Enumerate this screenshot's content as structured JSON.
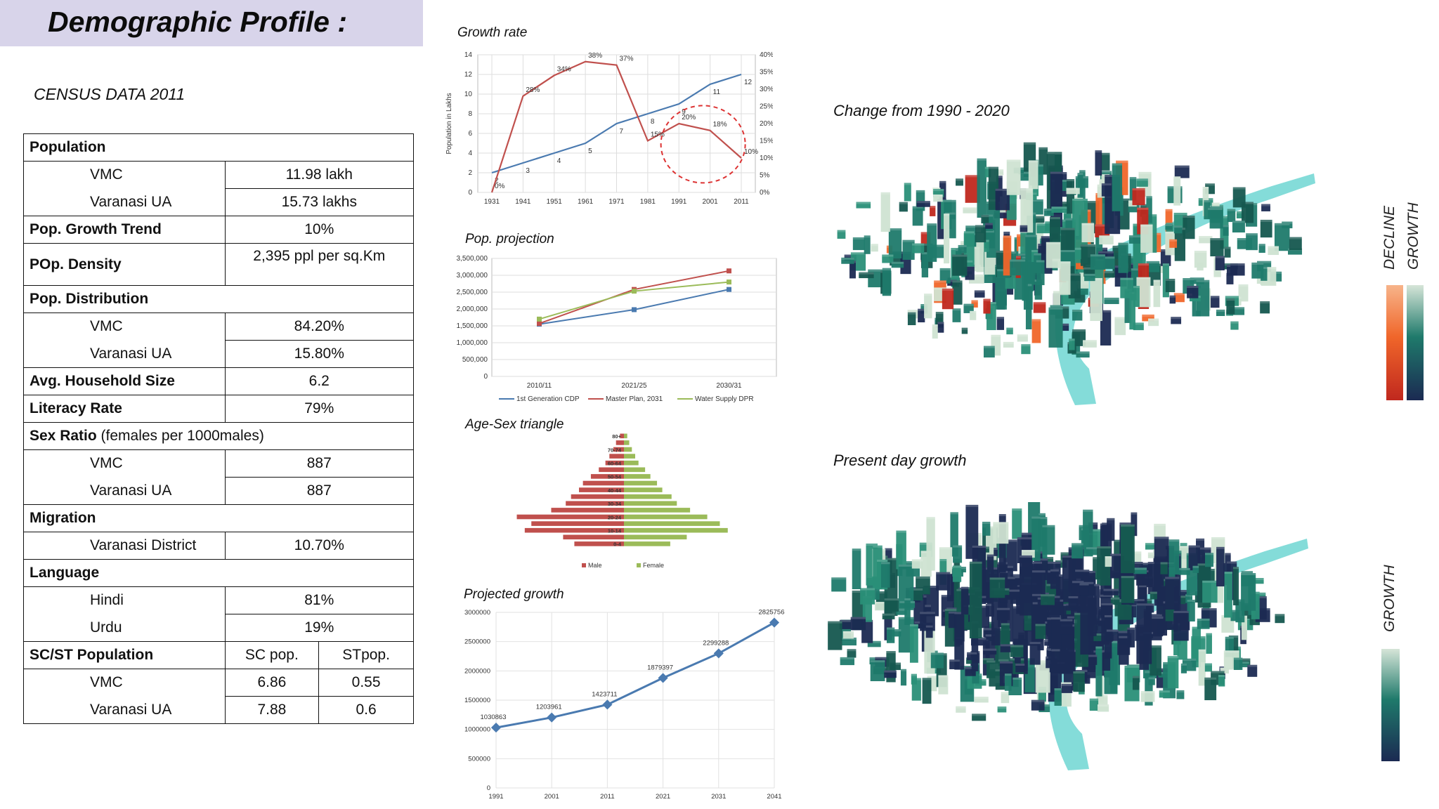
{
  "page": {
    "title": "Demographic Profile :",
    "census_label": "CENSUS DATA 2011"
  },
  "table": {
    "population": {
      "label": "Population",
      "vmc_label": "VMC",
      "vmc": "11.98 lakh",
      "ua_label": "Varanasi UA",
      "ua": "15.73 lakhs"
    },
    "growth_trend": {
      "label": "Pop. Growth Trend",
      "value": "10%"
    },
    "density": {
      "label": "POp. Density",
      "value": "2,395 ppl per sq.Km"
    },
    "distribution": {
      "label": "Pop. Distribution",
      "vmc_label": "VMC",
      "vmc": "84.20%",
      "ua_label": "Varanasi UA",
      "ua": "15.80%"
    },
    "household": {
      "label": "Avg. Household Size",
      "value": "6.2"
    },
    "literacy": {
      "label": "Literacy Rate",
      "value": "79%"
    },
    "sex_ratio": {
      "label": "Sex Ratio",
      "note": " (females per 1000males)",
      "vmc_label": "VMC",
      "vmc": "887",
      "ua_label": "Varanasi UA",
      "ua": "887"
    },
    "migration": {
      "label": "Migration",
      "district_label": "Varanasi District",
      "district": "10.70%"
    },
    "language": {
      "label": "Language",
      "hindi_label": "Hindi",
      "hindi": "81%",
      "urdu_label": "Urdu",
      "urdu": "19%"
    },
    "scst": {
      "label": "SC/ST Population",
      "sc_header": "SC pop.",
      "st_header": "STpop.",
      "vmc_label": "VMC",
      "vmc_sc": "6.86",
      "vmc_st": "0.55",
      "ua_label": "Varanasi UA",
      "ua_sc": "7.88",
      "ua_st": "0.6"
    }
  },
  "maps": {
    "change_title": "Change from 1990 - 2020",
    "present_title": "Present day growth",
    "legend_decline": "DECLINE",
    "legend_growth": "GROWTH",
    "colors": {
      "dark": "#1b2a52",
      "teal": "#1f7a6b",
      "light": "#cfe3d2",
      "river": "#6fd6d2",
      "orange": "#f0662a",
      "red": "#c0281e"
    }
  },
  "chart_data": [
    {
      "id": "growth-rate",
      "type": "line",
      "title": "Growth rate",
      "ylabel": "Population in Lakhs",
      "x": [
        1931,
        1941,
        1951,
        1961,
        1971,
        1981,
        1991,
        2001,
        2011
      ],
      "ylim": [
        0,
        14
      ],
      "y2lim": [
        0,
        40
      ],
      "y_ticks": [
        0,
        2,
        4,
        6,
        8,
        10,
        12,
        14
      ],
      "y2_ticks": [
        "0%",
        "5%",
        "10%",
        "15%",
        "20%",
        "25%",
        "30%",
        "35%",
        "40%"
      ],
      "series": [
        {
          "values": [
            2,
            3,
            4,
            5,
            7,
            8,
            9,
            11,
            12
          ],
          "labels": [
            "2",
            "3",
            "4",
            "5",
            "7",
            "8",
            "9",
            "11",
            "12"
          ],
          "color": "#4a7ab0",
          "axis": "left"
        },
        {
          "values": [
            0,
            28,
            34,
            38,
            37,
            15,
            20,
            18,
            10
          ],
          "labels": [
            "0%",
            "28%",
            "34%",
            "38%",
            "37%",
            "15%",
            "20%",
            "18%",
            "10%"
          ],
          "color": "#c0504d",
          "axis": "right"
        }
      ],
      "grid": true
    },
    {
      "id": "pop-projection",
      "type": "line",
      "title": "Pop. projection",
      "categories": [
        "2010/11",
        "2021/25",
        "2030/31"
      ],
      "ylim": [
        0,
        3500000
      ],
      "y_ticks": [
        "0",
        "500,000",
        "1,000,000",
        "1,500,000",
        "2,000,000",
        "2,500,000",
        "3,000,000",
        "3,500,000"
      ],
      "series": [
        {
          "name": "1st Generation CDP",
          "values": [
            1550000,
            1980000,
            2580000
          ],
          "color": "#4a7ab0"
        },
        {
          "name": "Master Plan, 2031",
          "values": [
            1570000,
            2580000,
            3130000
          ],
          "color": "#c0504d"
        },
        {
          "name": "Water Supply DPR",
          "values": [
            1700000,
            2530000,
            2800000
          ],
          "color": "#9bbb59"
        }
      ],
      "legend": "bottom",
      "grid": true
    },
    {
      "id": "age-sex",
      "type": "bar",
      "title": "Age-Sex triangle",
      "categories": [
        "0-4",
        "5-9",
        "10-14",
        "15-19",
        "20-24",
        "25-29",
        "30-34",
        "35-39",
        "40-44",
        "45-49",
        "50-54",
        "55-59",
        "60-64",
        "65-69",
        "70-74",
        "75-79",
        "80+"
      ],
      "tick_labels": [
        "0-4",
        "",
        "10-14",
        "",
        "20-24",
        "",
        "30-34",
        "",
        "40-44",
        "",
        "50-54",
        "",
        "60-64",
        "",
        "70-74",
        "",
        "80+"
      ],
      "series": [
        {
          "name": "Male",
          "values": [
            75,
            92,
            150,
            140,
            162,
            110,
            88,
            80,
            68,
            62,
            50,
            38,
            28,
            22,
            16,
            12,
            6
          ],
          "color": "#c0504d"
        },
        {
          "name": "Female",
          "values": [
            70,
            95,
            157,
            145,
            126,
            100,
            80,
            72,
            58,
            50,
            40,
            32,
            22,
            17,
            12,
            8,
            5
          ],
          "color": "#9bbb59"
        }
      ],
      "legend": "bottom"
    },
    {
      "id": "projected-growth",
      "type": "line",
      "title": "Projected growth",
      "x": [
        1991,
        2001,
        2011,
        2021,
        2031,
        2041
      ],
      "ylim": [
        0,
        3000000
      ],
      "y_ticks": [
        "0",
        "500000",
        "1000000",
        "1500000",
        "2000000",
        "2500000",
        "3000000"
      ],
      "series": [
        {
          "values": [
            1030863,
            1203961,
            1423711,
            1879397,
            2299288,
            2825756
          ],
          "labels": [
            "1030863",
            "1203961",
            "1423711",
            "1879397",
            "2299288",
            "2825756"
          ],
          "color": "#4a7ab0"
        }
      ],
      "grid": true
    }
  ]
}
